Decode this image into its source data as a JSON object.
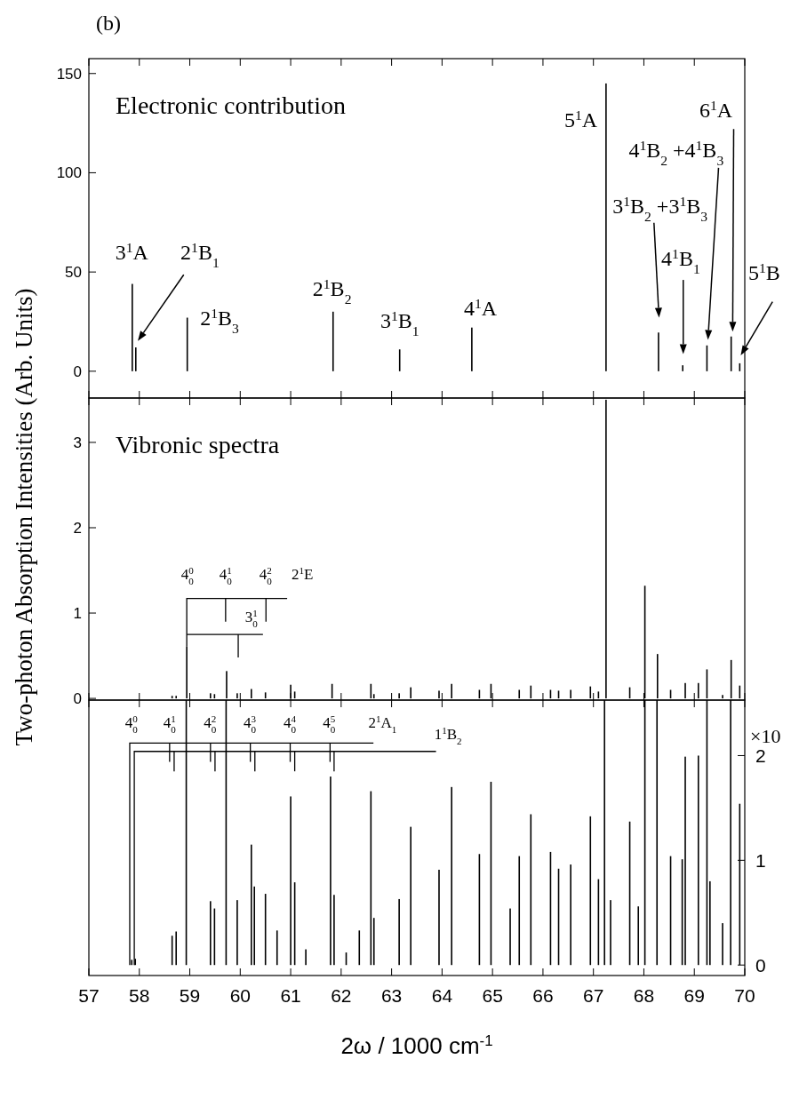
{
  "chart_data": [
    {
      "type": "bar",
      "title": "Electronic contribution",
      "annotations": [
        "(b)",
        "3$^{1}$A",
        "2$^{1}$B$_{1}$",
        "2$^{1}$B$_{3}$",
        "2$^{1}$B$_{2}$",
        "3$^{1}$B$_{1}$",
        "4$^{1}$A",
        "5$^{1}$A",
        "6$^{1}$A",
        "4$^{1}$B$_{2}$ +4$^{1}$B$_{3}$",
        "3$^{1}$B$_{2}$ +3$^{1}$B$_{3}$",
        "4$^{1}$B$_{1}$",
        "5$^{1}$B"
      ],
      "xlim": [
        57,
        70
      ],
      "xticks": [
        57,
        58,
        59,
        60,
        61,
        62,
        63,
        64,
        65,
        66,
        67,
        68,
        69,
        70
      ],
      "ylim": [
        -13.5,
        157.5
      ],
      "yticks": [
        0,
        50,
        100,
        150
      ],
      "tick_labels": "y",
      "series": [
        {
          "color": "#000000",
          "x": [
            57.86,
            57.93,
            58.95,
            61.84,
            63.16,
            64.59,
            67.25,
            68.29,
            68.77,
            69.25,
            69.73,
            69.9
          ],
          "values": [
            44,
            12,
            27,
            30,
            11,
            22,
            145,
            19.5,
            3,
            13,
            17.5,
            4
          ]
        }
      ]
    },
    {
      "type": "bar",
      "title": "Vibronic spectra",
      "ylabel": "Two-photon Absorption Intensities (Arb. Units)",
      "annotations": [
        "4$_{0}$$^{0}$",
        "4$_{0}$$^{1}$",
        "4$_{0}$$^{2}$",
        {
          "text": "2$^{1}$E",
          "x": 58.94,
          "y": 0.61
        },
        "3$_{0}$$^{1}$"
      ],
      "xlim": [
        57,
        70
      ],
      "xticks": [
        57,
        58,
        59,
        60,
        61,
        62,
        63,
        64,
        65,
        66,
        67,
        68,
        69,
        70
      ],
      "ylim": [
        -0.02,
        3.52
      ],
      "yticks": [
        0,
        1,
        2,
        3
      ],
      "tick_labels": "y",
      "series": [
        {
          "color": "#000000",
          "x": [
            58.65,
            58.73,
            58.94,
            59.41,
            59.49,
            59.73,
            59.94,
            60.22,
            60.5,
            61.0,
            61.08,
            61.82,
            62.59,
            62.65,
            63.15,
            63.38,
            63.94,
            64.19,
            64.74,
            64.97,
            65.53,
            65.76,
            66.15,
            66.31,
            66.55,
            66.94,
            67.1,
            67.25,
            67.72,
            68.02,
            68.27,
            68.53,
            68.82,
            69.08,
            69.25,
            69.56,
            69.73,
            69.9
          ],
          "values": [
            0.03,
            0.03,
            0.61,
            0.06,
            0.05,
            0.32,
            0.06,
            0.11,
            0.07,
            0.16,
            0.08,
            0.17,
            0.17,
            0.05,
            0.06,
            0.13,
            0.09,
            0.17,
            0.1,
            0.17,
            0.1,
            0.15,
            0.1,
            0.09,
            0.1,
            0.14,
            0.08,
            3.5,
            0.13,
            1.32,
            0.52,
            0.1,
            0.18,
            0.18,
            0.34,
            0.04,
            0.45,
            0.15
          ]
        }
      ]
    },
    {
      "type": "bar",
      "xlabel": "2ω / 1000 cm$^{-1}$",
      "y2label": "×10",
      "annotations": [
        "4$_{0}$$^{0}$",
        "4$_{0}$$^{1}$",
        "4$_{0}$$^{2}$",
        "4$_{0}$$^{3}$",
        "4$_{0}$$^{4}$",
        "4$_{0}$$^{5}$",
        "2$^{1}$A$_{1}$",
        "1$^{1}$B$_{2}$"
      ],
      "xlim": [
        57,
        70
      ],
      "xticks": [
        57,
        58,
        59,
        60,
        61,
        62,
        63,
        64,
        65,
        66,
        67,
        68,
        69,
        70
      ],
      "y2lim": [
        -0.1,
        2.53
      ],
      "y2ticks": [
        0,
        1,
        2
      ],
      "series": [
        {
          "color": "#000000",
          "axis": "y2",
          "x": [
            57.85,
            57.92,
            58.65,
            58.73,
            58.93,
            59.41,
            59.49,
            59.72,
            59.94,
            60.22,
            60.28,
            60.5,
            60.73,
            61.0,
            61.08,
            61.3,
            61.79,
            61.86,
            62.1,
            62.36,
            62.59,
            62.65,
            63.15,
            63.38,
            63.94,
            64.19,
            64.74,
            64.97,
            65.35,
            65.53,
            65.76,
            66.15,
            66.31,
            66.55,
            66.94,
            67.1,
            67.22,
            67.34,
            67.72,
            67.89,
            68.02,
            68.26,
            68.53,
            68.76,
            68.82,
            69.08,
            69.25,
            69.31,
            69.56,
            69.72,
            69.9
          ],
          "values": [
            0.05,
            0.06,
            0.28,
            0.32,
            2.53,
            0.61,
            0.54,
            2.53,
            0.62,
            1.15,
            0.75,
            0.68,
            0.33,
            1.61,
            0.79,
            0.15,
            1.8,
            0.67,
            0.12,
            0.33,
            1.66,
            0.45,
            0.63,
            1.32,
            0.91,
            1.7,
            1.06,
            1.75,
            0.54,
            1.04,
            1.44,
            1.08,
            0.92,
            0.96,
            1.42,
            0.82,
            2.53,
            0.62,
            1.37,
            0.56,
            2.53,
            2.53,
            1.04,
            1.01,
            1.99,
            2.0,
            2.53,
            0.8,
            0.4,
            2.53,
            1.54
          ]
        }
      ]
    }
  ]
}
